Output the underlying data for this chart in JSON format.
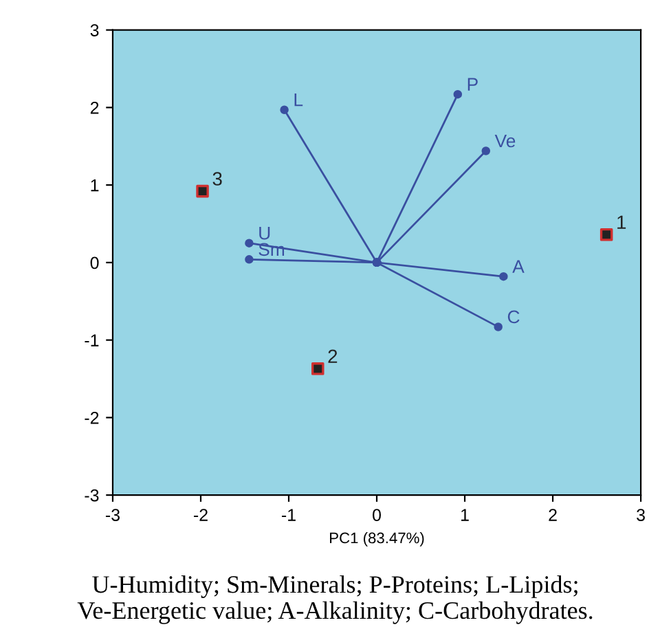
{
  "chart_data": {
    "type": "scatter",
    "xlabel": "PC1 (83.47%)",
    "xlim": [
      -3,
      3
    ],
    "ylim": [
      -3,
      3
    ],
    "xticks": [
      -3,
      -2,
      -1,
      0,
      1,
      2,
      3
    ],
    "yticks": [
      -3,
      -2,
      -1,
      0,
      1,
      2,
      3
    ],
    "grid": false,
    "legend": false,
    "series": [
      {
        "marker": "square",
        "color": "#222222",
        "x": [
          2.61,
          -0.67,
          -1.98
        ],
        "values": [
          0.36,
          -1.37,
          0.92
        ]
      },
      {
        "type": "line",
        "name": "U",
        "color": "#3a4fa0",
        "marker": "circle",
        "x": [
          0,
          -1.45
        ],
        "values": [
          0,
          0.25
        ]
      },
      {
        "type": "line",
        "name": "Sm",
        "color": "#3a4fa0",
        "marker": "circle",
        "x": [
          0,
          -1.45
        ],
        "values": [
          0,
          0.04
        ]
      },
      {
        "type": "line",
        "name": "P",
        "color": "#3a4fa0",
        "marker": "circle",
        "x": [
          0,
          0.92
        ],
        "values": [
          0,
          2.17
        ]
      },
      {
        "type": "line",
        "name": "L",
        "color": "#3a4fa0",
        "marker": "circle",
        "x": [
          0,
          -1.05
        ],
        "values": [
          0,
          1.97
        ]
      },
      {
        "type": "line",
        "name": "Ve",
        "color": "#3a4fa0",
        "marker": "circle",
        "x": [
          0,
          1.24
        ],
        "values": [
          0,
          1.44
        ]
      },
      {
        "type": "line",
        "name": "A",
        "color": "#3a4fa0",
        "marker": "circle",
        "x": [
          0,
          1.44
        ],
        "values": [
          0,
          -0.18
        ]
      },
      {
        "type": "line",
        "name": "C",
        "color": "#3a4fa0",
        "marker": "circle",
        "x": [
          0,
          1.38
        ],
        "values": [
          0,
          -0.83
        ]
      }
    ],
    "annotations": [
      {
        "text": "1",
        "x": 2.61,
        "y": 0.36
      },
      {
        "text": "2",
        "x": -0.67,
        "y": -1.37
      },
      {
        "text": "3",
        "x": -1.98,
        "y": 0.92
      },
      "U-Humidity; Sm-Minerals; P-Proteins; L-Lipids;\nVe-Energetic value; A-Alkalinity; C-Carbohydrates."
    ]
  }
}
